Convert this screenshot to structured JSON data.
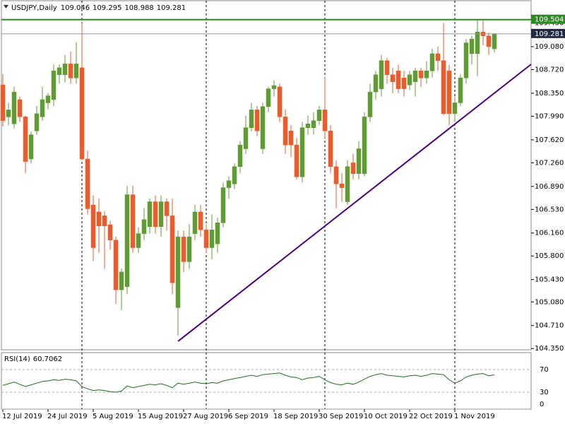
{
  "chart_data": [
    {
      "type": "candlestick",
      "title": "USDJPY,Daily",
      "header_values": [
        109.046,
        109.295,
        108.988,
        109.281
      ],
      "categories": [
        "12 Jul 2019",
        null,
        null,
        null,
        null,
        null,
        null,
        null,
        "24 Jul 2019",
        null,
        null,
        null,
        null,
        null,
        null,
        null,
        "5 Aug 2019",
        null,
        null,
        null,
        null,
        null,
        null,
        null,
        "15 Aug 2019",
        null,
        null,
        null,
        null,
        null,
        null,
        null,
        "27 Aug 2019",
        null,
        null,
        null,
        null,
        null,
        null,
        null,
        "6 Sep 2019",
        null,
        null,
        null,
        null,
        null,
        null,
        null,
        "18 Sep 2019",
        null,
        null,
        null,
        null,
        null,
        null,
        null,
        "30 Sep 2019",
        null,
        null,
        null,
        null,
        null,
        null,
        null,
        "10 Oct 2019",
        null,
        null,
        null,
        null,
        null,
        null,
        null,
        "22 Oct 2019",
        null,
        null,
        null,
        null,
        null,
        null,
        null,
        "1 Nov 2019",
        null,
        null,
        null,
        null,
        null,
        null,
        null
      ],
      "open": [
        108.48,
        107.98,
        107.87,
        108.25,
        107.98,
        107.32,
        107.76,
        107.98,
        108.2,
        108.25,
        108.64,
        108.64,
        108.81,
        108.59,
        108.75,
        107.32,
        106.6,
        106.49,
        106.43,
        106.29,
        106.05,
        105.27,
        105.32,
        106.76,
        105.93,
        106.15,
        106.26,
        106.65,
        106.26,
        106.65,
        106.43,
        104.99,
        106.1,
        105.71,
        106.15,
        106.49,
        106.21,
        105.93,
        105.99,
        106.32,
        106.87,
        106.93,
        107.2,
        107.48,
        107.81,
        108.09,
        107.48,
        108.14,
        108.42,
        108.45,
        107.98,
        107.76,
        107.54,
        107.04,
        107.81,
        107.81,
        107.92,
        108.09,
        107.76,
        107.2,
        106.93,
        106.65,
        107.26,
        107.09,
        107.09,
        107.98,
        108.37,
        108.42,
        108.86,
        108.64,
        108.7,
        108.59,
        108.48,
        108.53,
        108.7,
        108.59,
        108.7,
        108.97,
        108.86,
        108.7,
        108.03,
        108.2,
        108.59,
        108.97,
        108.97,
        109.31,
        109.25,
        109.046
      ],
      "high": [
        108.65,
        108.2,
        108.45,
        108.3,
        108.0,
        107.75,
        108.15,
        108.45,
        108.35,
        108.8,
        108.8,
        108.95,
        109.0,
        109.15,
        109.45,
        107.45,
        106.75,
        106.7,
        106.5,
        106.35,
        106.1,
        105.6,
        106.9,
        106.9,
        106.25,
        106.55,
        106.7,
        106.75,
        106.75,
        106.7,
        106.7,
        106.2,
        106.2,
        106.3,
        106.6,
        106.6,
        106.3,
        106.45,
        106.4,
        106.95,
        107.05,
        107.25,
        107.6,
        108.0,
        108.2,
        108.15,
        108.2,
        108.45,
        108.55,
        108.5,
        108.1,
        107.85,
        107.65,
        107.9,
        108.0,
        108.05,
        108.15,
        108.6,
        107.85,
        107.3,
        107.1,
        107.3,
        107.4,
        107.6,
        108.05,
        108.5,
        108.7,
        108.95,
        108.9,
        108.75,
        108.8,
        108.7,
        108.7,
        108.75,
        108.75,
        108.85,
        109.05,
        109.08,
        109.45,
        108.8,
        108.3,
        108.65,
        109.2,
        109.25,
        109.5,
        109.5,
        109.3,
        109.295
      ],
      "low": [
        107.83,
        107.85,
        107.8,
        107.9,
        107.1,
        107.25,
        107.7,
        107.92,
        108.1,
        108.15,
        108.5,
        108.52,
        108.5,
        108.5,
        107.3,
        106.45,
        105.72,
        105.85,
        105.6,
        105.9,
        105.05,
        104.95,
        105.2,
        105.85,
        105.85,
        106.05,
        106.15,
        106.15,
        106.1,
        106.2,
        105.2,
        104.55,
        105.55,
        105.6,
        106.05,
        106.1,
        105.85,
        105.75,
        105.85,
        106.25,
        106.7,
        106.85,
        107.1,
        107.4,
        107.75,
        107.68,
        107.4,
        108.05,
        108.3,
        107.9,
        107.4,
        107.35,
        107.0,
        106.95,
        107.7,
        107.7,
        107.85,
        107.65,
        107.1,
        106.55,
        106.65,
        106.6,
        107.0,
        107.0,
        107.05,
        107.9,
        108.25,
        108.3,
        108.5,
        108.35,
        108.35,
        108.3,
        108.4,
        108.3,
        108.45,
        108.5,
        108.6,
        108.7,
        108.0,
        107.85,
        107.9,
        108.15,
        108.5,
        108.8,
        108.62,
        109.1,
        108.95,
        108.988
      ],
      "close": [
        107.92,
        108.09,
        108.37,
        107.98,
        107.28,
        107.7,
        108.03,
        108.25,
        108.31,
        108.7,
        108.75,
        108.81,
        108.59,
        108.81,
        107.32,
        106.54,
        105.93,
        106.27,
        106.27,
        106.05,
        105.27,
        105.55,
        106.76,
        105.93,
        106.15,
        106.37,
        106.65,
        106.26,
        106.65,
        106.43,
        105.38,
        106.1,
        105.71,
        106.1,
        106.49,
        106.21,
        105.93,
        106.21,
        106.32,
        106.87,
        106.98,
        107.2,
        107.54,
        107.81,
        108.09,
        107.76,
        108.14,
        108.42,
        108.47,
        107.98,
        107.54,
        107.54,
        107.04,
        107.81,
        107.87,
        107.92,
        108.09,
        107.76,
        107.2,
        106.93,
        106.87,
        107.2,
        107.09,
        107.48,
        107.98,
        108.37,
        108.64,
        108.86,
        108.64,
        108.53,
        108.42,
        108.42,
        108.64,
        108.7,
        108.59,
        108.7,
        108.97,
        108.86,
        108.03,
        108.03,
        108.2,
        108.59,
        109.14,
        109.2,
        109.31,
        109.25,
        109.08,
        109.281
      ],
      "up_color": "#5f9b32",
      "down_color": "#f05a2a",
      "ylim": [
        104.33,
        109.8
      ],
      "yticks": [
        {
          "value": 109.45,
          "label": "109.450"
        },
        {
          "value": 109.08,
          "label": "109.080"
        },
        {
          "value": 108.72,
          "label": "108.720"
        },
        {
          "value": 108.35,
          "label": "108.350"
        },
        {
          "value": 107.99,
          "label": "107.990"
        },
        {
          "value": 107.62,
          "label": "107.620"
        },
        {
          "value": 107.26,
          "label": "107.260"
        },
        {
          "value": 106.89,
          "label": "106.890"
        },
        {
          "value": 106.53,
          "label": "106.530"
        },
        {
          "value": 106.16,
          "label": "106.160"
        },
        {
          "value": 105.8,
          "label": "105.800"
        },
        {
          "value": 105.43,
          "label": "105.430"
        },
        {
          "value": 105.08,
          "label": "105.080"
        },
        {
          "value": 104.71,
          "label": "104.710"
        },
        {
          "value": 104.35,
          "label": "104.350"
        }
      ],
      "grid": false,
      "level": {
        "value": 109.504,
        "color": "#2e8b22"
      },
      "last_price": {
        "value": 109.281,
        "color": "#8a94a6"
      }
    },
    {
      "type": "line",
      "title": "RSI(14)",
      "color": "#1f6e1f",
      "values": [
        42,
        45,
        48,
        44,
        40,
        43,
        46,
        49,
        50,
        52,
        51,
        53,
        52,
        50,
        40,
        36,
        33,
        34,
        33,
        31,
        30,
        32,
        41,
        38,
        40,
        42,
        44,
        43,
        45,
        42,
        38,
        46,
        44,
        46,
        48,
        46,
        45,
        47,
        46,
        50,
        52,
        54,
        56,
        58,
        60,
        58,
        61,
        62,
        63,
        64,
        60,
        57,
        56,
        52,
        55,
        56,
        58,
        52,
        47,
        44,
        43,
        46,
        44,
        48,
        53,
        58,
        61,
        63,
        60,
        59,
        58,
        57,
        59,
        60,
        58,
        60,
        63,
        62,
        61,
        52,
        46,
        50,
        57,
        60,
        62,
        63,
        59,
        60.7062
      ],
      "ylim": [
        0,
        100
      ],
      "yticks": [
        0,
        30,
        70
      ],
      "grid": true
    }
  ]
}
